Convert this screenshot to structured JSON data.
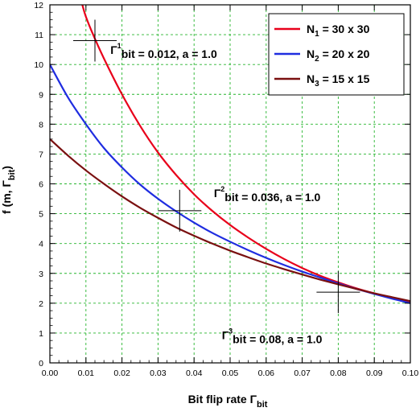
{
  "chart_data": {
    "type": "line",
    "xlabel": "Bit flip rate Γ",
    "xlabel_sub": "bit",
    "ylabel": "f (m, Γ",
    "ylabel_sub": "bit",
    "ylabel_close": ")",
    "xlim": [
      0,
      0.1
    ],
    "ylim": [
      0,
      12
    ],
    "xticks": [
      0.0,
      0.01,
      0.02,
      0.03,
      0.04,
      0.05,
      0.06,
      0.07,
      0.08,
      0.09,
      0.1
    ],
    "xtick_labels": [
      "0.00",
      "0.01",
      "0.02",
      "0.03",
      "0.04",
      "0.05",
      "0.06",
      "0.07",
      "0.08",
      "0.09",
      "0.10"
    ],
    "yticks": [
      0,
      1,
      2,
      3,
      4,
      5,
      6,
      7,
      8,
      9,
      10,
      11,
      12
    ],
    "ytick_labels": [
      "0",
      "1",
      "2",
      "3",
      "4",
      "5",
      "6",
      "7",
      "8",
      "9",
      "10",
      "11",
      "12"
    ],
    "grid": true,
    "legend_position": "top-right",
    "series": [
      {
        "name": "N1 = 30 x 30",
        "legend": {
          "pre": "N",
          "sub": "1",
          "post": " = 30 x 30"
        },
        "color": "#e8001a",
        "x": [
          0.0,
          0.009,
          0.01,
          0.012,
          0.015,
          0.02,
          0.025,
          0.03,
          0.035,
          0.04,
          0.045,
          0.05,
          0.055,
          0.06,
          0.065,
          0.07,
          0.075,
          0.08,
          0.085,
          0.09,
          0.095,
          0.1
        ],
        "y": [
          null,
          12.0,
          11.6,
          11.0,
          10.2,
          9.0,
          7.95,
          7.05,
          6.3,
          5.65,
          5.1,
          4.62,
          4.2,
          3.82,
          3.48,
          3.18,
          2.92,
          2.7,
          2.5,
          2.33,
          2.18,
          2.05
        ]
      },
      {
        "name": "N2 = 20 x 20",
        "legend": {
          "pre": "N",
          "sub": "2",
          "post": " = 20 x 20"
        },
        "color": "#1f2de0",
        "x": [
          0.0,
          0.005,
          0.01,
          0.015,
          0.02,
          0.025,
          0.03,
          0.035,
          0.04,
          0.045,
          0.05,
          0.055,
          0.06,
          0.065,
          0.07,
          0.075,
          0.08,
          0.085,
          0.09,
          0.095,
          0.1
        ],
        "y": [
          10.0,
          8.9,
          8.0,
          7.2,
          6.55,
          5.98,
          5.5,
          5.08,
          4.7,
          4.36,
          4.06,
          3.78,
          3.52,
          3.28,
          3.06,
          2.86,
          2.66,
          2.48,
          2.31,
          2.15,
          2.0
        ]
      },
      {
        "name": "N3 = 15 x 15",
        "legend": {
          "pre": "N",
          "sub": "3",
          "post": " = 15 x 15"
        },
        "color": "#7a1010",
        "x": [
          0.0,
          0.005,
          0.01,
          0.015,
          0.02,
          0.025,
          0.03,
          0.035,
          0.04,
          0.045,
          0.05,
          0.055,
          0.06,
          0.065,
          0.07,
          0.075,
          0.08,
          0.085,
          0.09,
          0.095,
          0.1
        ],
        "y": [
          7.5,
          6.95,
          6.45,
          6.0,
          5.58,
          5.2,
          4.86,
          4.54,
          4.26,
          4.0,
          3.76,
          3.54,
          3.33,
          3.14,
          2.96,
          2.79,
          2.63,
          2.48,
          2.33,
          2.2,
          2.07
        ]
      }
    ],
    "markers": [
      {
        "x": 0.0125,
        "y": 10.8
      },
      {
        "x": 0.036,
        "y": 5.1
      },
      {
        "x": 0.08,
        "y": 2.37
      }
    ],
    "annotations": [
      {
        "pre": "Γ",
        "sup": "1",
        "sub": "bit",
        "post": " = 0.012, a = 1.0",
        "x": 0.0168,
        "y": 10.35
      },
      {
        "pre": "Γ",
        "sup": "2",
        "sub": "bit",
        "post": " = 0.036, a = 1.0",
        "x": 0.0455,
        "y": 5.55
      },
      {
        "pre": "Γ",
        "sup": "3",
        "sub": "bit",
        "post": " = 0.08, a = 1.0",
        "x": 0.0477,
        "y": 0.8
      }
    ]
  }
}
